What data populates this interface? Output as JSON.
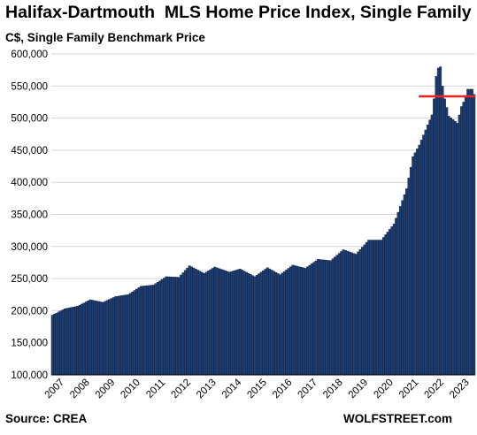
{
  "chart_data": {
    "type": "bar",
    "title": "Halifax-Dartmouth  MLS Home Price Index, Single Family",
    "subtitle": "C$, Single Family Benchmark Price",
    "source": "Source: CREA",
    "brand": "WOLFSTREET.com",
    "ylim": [
      100000,
      600000
    ],
    "yticks": [
      100000,
      150000,
      200000,
      250000,
      300000,
      350000,
      400000,
      450000,
      500000,
      550000,
      600000
    ],
    "ytick_labels": [
      "100,000",
      "150,000",
      "200,000",
      "250,000",
      "300,000",
      "350,000",
      "400,000",
      "450,000",
      "500,000",
      "550,000",
      "600,000"
    ],
    "xtick_labels": [
      "2007",
      "2008",
      "2009",
      "2010",
      "2011",
      "2012",
      "2013",
      "2014",
      "2015",
      "2016",
      "2017",
      "2018",
      "2019",
      "2020",
      "2021",
      "2022",
      "2023"
    ],
    "grid": true,
    "bar_color": "#1f3f73",
    "reference_line": {
      "value": 534000,
      "from_month": "2022-02",
      "color": "#e8262a"
    },
    "anchors": [
      [
        "2007-01",
        193000
      ],
      [
        "2007-07",
        203000
      ],
      [
        "2008-01",
        207000
      ],
      [
        "2008-07",
        217000
      ],
      [
        "2009-01",
        213000
      ],
      [
        "2009-07",
        222000
      ],
      [
        "2010-01",
        225000
      ],
      [
        "2010-07",
        238000
      ],
      [
        "2011-01",
        240000
      ],
      [
        "2011-07",
        253000
      ],
      [
        "2012-01",
        252000
      ],
      [
        "2012-06",
        270000
      ],
      [
        "2013-01",
        258000
      ],
      [
        "2013-06",
        268000
      ],
      [
        "2014-01",
        260000
      ],
      [
        "2014-06",
        265000
      ],
      [
        "2015-01",
        253000
      ],
      [
        "2015-07",
        267000
      ],
      [
        "2016-01",
        256000
      ],
      [
        "2016-07",
        271000
      ],
      [
        "2017-01",
        266000
      ],
      [
        "2017-07",
        280000
      ],
      [
        "2018-01",
        278000
      ],
      [
        "2018-07",
        295000
      ],
      [
        "2019-01",
        288000
      ],
      [
        "2019-07",
        310000
      ],
      [
        "2020-01",
        310000
      ],
      [
        "2020-07",
        335000
      ],
      [
        "2021-01",
        390000
      ],
      [
        "2021-04",
        440000
      ],
      [
        "2021-07",
        458000
      ],
      [
        "2022-01",
        505000
      ],
      [
        "2022-02",
        530000
      ],
      [
        "2022-03",
        565000
      ],
      [
        "2022-04",
        578000
      ],
      [
        "2022-05",
        580000
      ],
      [
        "2022-06",
        550000
      ],
      [
        "2022-07",
        530000
      ],
      [
        "2022-09",
        503000
      ],
      [
        "2022-12",
        495000
      ],
      [
        "2023-01",
        492000
      ],
      [
        "2023-03",
        518000
      ],
      [
        "2023-05",
        532000
      ],
      [
        "2023-06",
        545000
      ],
      [
        "2023-08",
        545000
      ],
      [
        "2023-09",
        537000
      ]
    ]
  }
}
